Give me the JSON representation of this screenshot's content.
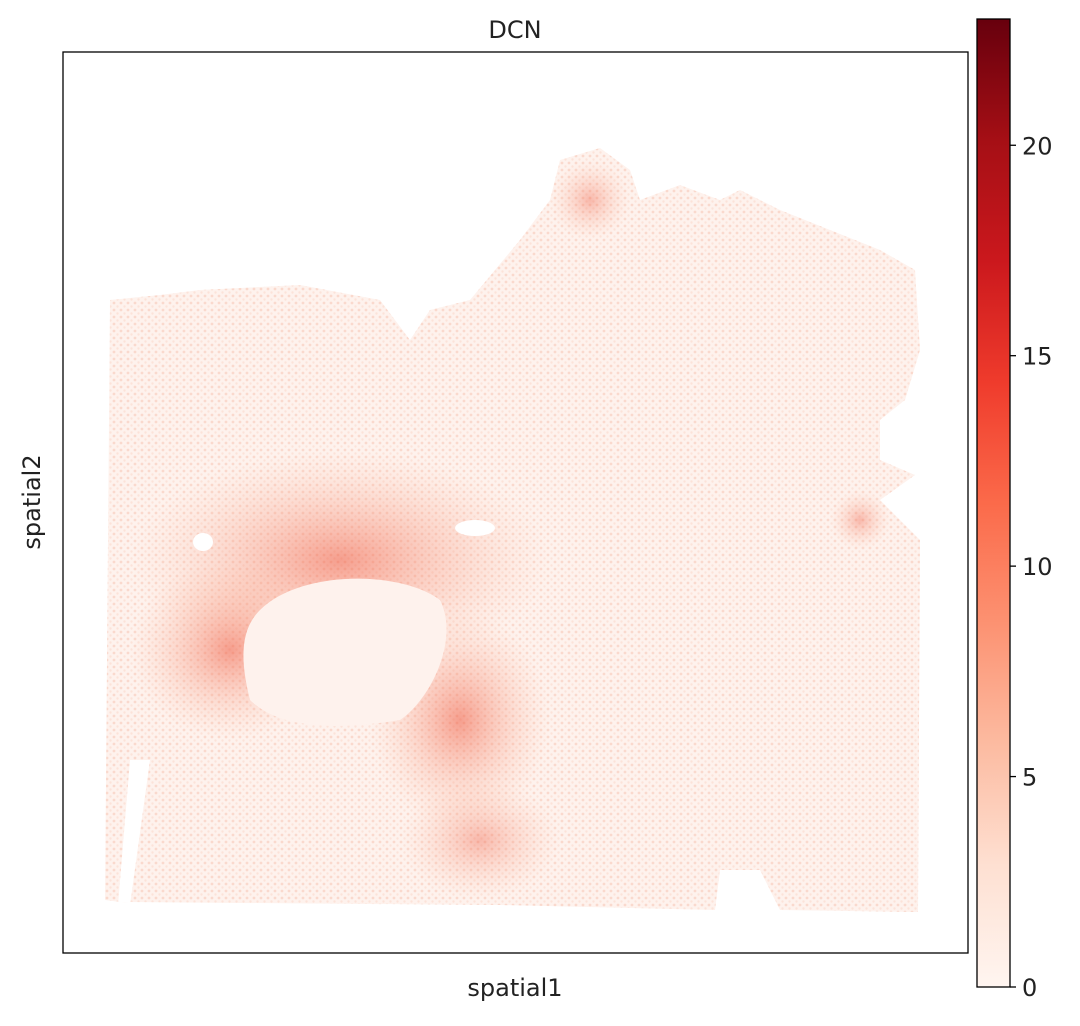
{
  "chart_data": {
    "type": "scatter",
    "title": "DCN",
    "x_label": "spatial1",
    "y_label": "spatial2",
    "colorbar": {
      "lim": [
        0,
        23
      ],
      "ticks": [
        0,
        5,
        10,
        15,
        20
      ],
      "colors": [
        "#fff5f0",
        "#fee0d2",
        "#fcbba1",
        "#fc9272",
        "#fb6a4a",
        "#ef3b2c",
        "#cb181d",
        "#a50f15",
        "#67000d"
      ]
    }
  }
}
